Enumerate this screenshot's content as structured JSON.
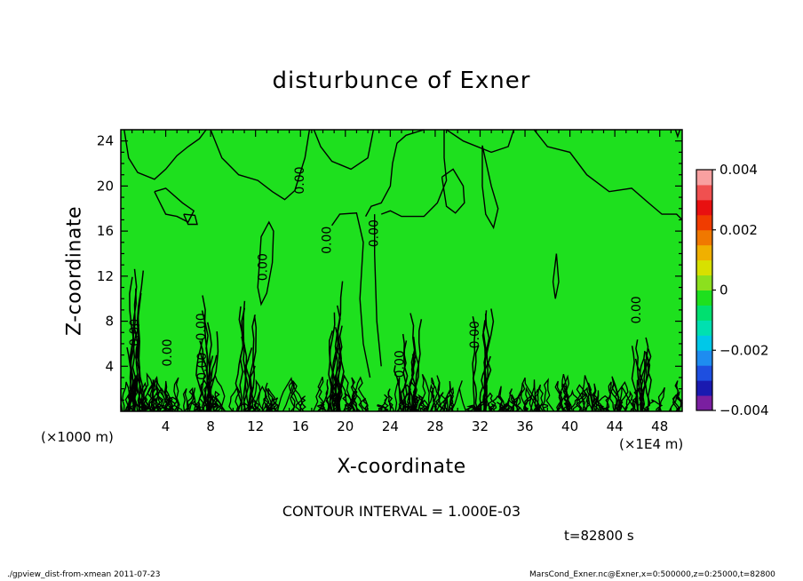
{
  "chart_data": {
    "type": "heatmap",
    "title": "disturbunce of Exner",
    "xlabel": "X-coordinate",
    "ylabel": "Z-coordinate",
    "x_unit_label": "(×1000 m)",
    "x_secondary_unit_label": "(×1E4 m)",
    "xlim": [
      0,
      50
    ],
    "ylim": [
      0,
      25
    ],
    "x_ticks": [
      4,
      8,
      12,
      16,
      20,
      24,
      28,
      32,
      36,
      40,
      44,
      48
    ],
    "y_ticks": [
      4,
      8,
      12,
      16,
      20,
      24
    ],
    "colorbar": {
      "min": -0.004,
      "max": 0.004,
      "tick_values": [
        0.004,
        0.002,
        0,
        -0.002,
        -0.004
      ],
      "tick_labels": [
        "0.004",
        "0.002",
        "0",
        "−0.002",
        "−0.004"
      ],
      "colors": [
        "#7a1fa0",
        "#1a1ab0",
        "#1e4fe0",
        "#1e8cf0",
        "#00c8e8",
        "#00e0b0",
        "#00e070",
        "#1ee01e",
        "#8ce01e",
        "#d8e000",
        "#f0b000",
        "#f07800",
        "#f03c00",
        "#e81010",
        "#f05050",
        "#f8a0a0"
      ]
    },
    "contour_labels": [
      "0.00",
      "0.00",
      "0.00",
      "0.00",
      "0.00",
      "0.00",
      "0.00",
      "0.00",
      "0.00",
      "0.00",
      "0.00"
    ],
    "field_color": "#1ee01e"
  },
  "annotations": {
    "contour_interval": "CONTOUR INTERVAL = 1.000E-03",
    "time": "t=82800 s",
    "footer_left": "./gpview_dist-from-xmean   2011-07-23",
    "footer_right": "MarsCond_Exner.nc@Exner,x=0:500000,z=0:25000,t=82800"
  }
}
